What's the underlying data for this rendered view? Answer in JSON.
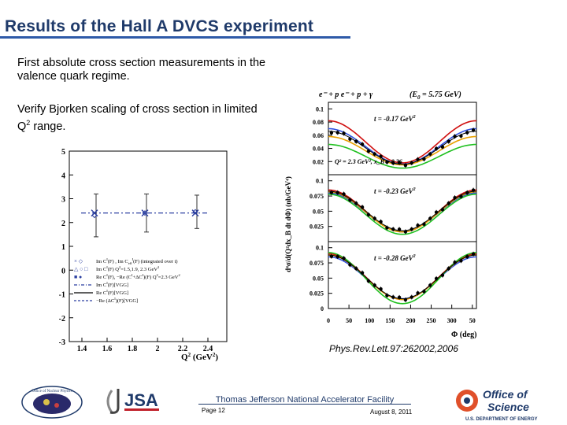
{
  "slide": {
    "title": "Results of the Hall A DVCS experiment",
    "paragraph1": "First absolute cross section measurements in the valence quark regime.",
    "paragraph2_main": "Verify Bjorken scaling of cross section in limited Q",
    "paragraph2_sup": "2",
    "paragraph2_tail": " range.",
    "reference": "Phys.Rev.Lett.97:262002,2006"
  },
  "left_plot": {
    "y_ticks": [
      "5",
      "4",
      "3",
      "2",
      "1",
      "0",
      "-1",
      "-2",
      "-3"
    ],
    "x_ticks": [
      "1.4",
      "1.6",
      "1.8",
      "2",
      "2.2",
      "2.4"
    ],
    "x_label": "Q",
    "x_label_sup": "2",
    "x_label_unit": " (GeV",
    "x_label_unit_sup": "2",
    "x_label_close": ")",
    "legend": [
      {
        "symbols": "× ◇",
        "text": "Im C",
        "sup": "I",
        "text2": "(F) , Im C",
        "sup2": "I",
        "sub2": "eff",
        "text3": "(F) (integrated over t)"
      },
      {
        "symbols": "△ ○ □",
        "text": "Im C",
        "sup": "I",
        "text2": "(F)  Q",
        "sup2": "2",
        "text3": "=1.5,1.9, 2.3 GeV",
        "sup3": "2"
      },
      {
        "symbols": "■ ●",
        "text": "Re C",
        "sup": "I",
        "text2": "(F), −Re (C",
        "sup2": "I",
        "text3": "+ΔC",
        "sup3": "I",
        "text4": ")(F)  Q",
        "sup4": "2",
        "text5": "=2.3 GeV",
        "sup5": "2"
      },
      {
        "symbols": "",
        "text": "Im C",
        "sup": "I",
        "text2": "(F)",
        "text3": "[VGG]"
      },
      {
        "symbols": "",
        "text": "Re C",
        "sup": "I",
        "text2": "(F)",
        "text3": "[VGG]"
      },
      {
        "symbols": "",
        "text": "−Re (ΔC",
        "sup": "I",
        "text2": ")(F)",
        "text3": "[VGG]"
      }
    ],
    "points": [
      {
        "q2": 1.5,
        "im_int": 2.4,
        "im_sep": 2.3,
        "err": 0.9
      },
      {
        "q2": 1.9,
        "im_int": 2.4,
        "im_sep": 2.4,
        "err": 0.8
      },
      {
        "q2": 2.3,
        "im_int": 2.4,
        "im_sep": 2.45,
        "err": 0.7
      }
    ],
    "dash_value": 2.4
  },
  "right_plot": {
    "reaction": "e⁻ + p    e⁻ + p + γ",
    "beam": "(E",
    "beam_sub": "0",
    "beam_tail": " = 5.75 GeV)",
    "y_axis_label": "d⁴σ/d(Q²dx_B dt dΦ) (nb/GeV⁴)",
    "panels": [
      {
        "label": "t = -0.17 GeV",
        "sup": "2",
        "ticks": [
          "0.1",
          "0.08",
          "0.06",
          "0.04",
          "0.02"
        ],
        "extra": "Q² = 2.3 GeV², x_B = 0.36"
      },
      {
        "label": "t = -0.23 GeV",
        "sup": "2",
        "ticks": [
          "0.1",
          "0.075",
          "0.05",
          "0.025"
        ]
      },
      {
        "label": "t = -0.28 GeV",
        "sup": "2",
        "ticks": [
          "0.1",
          "0.075",
          "0.05",
          "0.025",
          "0"
        ]
      }
    ],
    "x_ticks": [
      "0",
      "50",
      "100",
      "150",
      "200",
      "250",
      "300",
      "50"
    ],
    "x_label": "Φ (deg)",
    "curve_colors": [
      "#d01010",
      "#3050e0",
      "#e8a000",
      "#20c020",
      "#000000"
    ]
  },
  "footer": {
    "center": "Thomas Jefferson National Accelerator Facility",
    "page": "Page 12",
    "date": "August 8, 2011",
    "logo_nuclear": "Office of Nuclear Physics",
    "logo_jsa": "JSA",
    "logo_science_line1": "Office of",
    "logo_science_line2": "Science",
    "logo_science_sub": "U.S. DEPARTMENT OF ENERGY"
  },
  "colors": {
    "title": "#1f3a6a",
    "rule": "#2e5aa8"
  }
}
